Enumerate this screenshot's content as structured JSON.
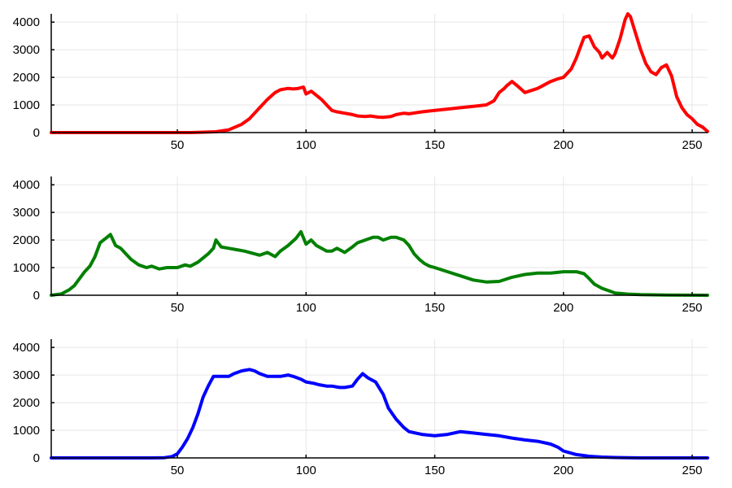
{
  "chart_data": [
    {
      "type": "line",
      "title": "",
      "xlabel": "",
      "ylabel": "",
      "xlim": [
        1,
        256
      ],
      "ylim": [
        0,
        4300
      ],
      "xticks": [
        50,
        100,
        150,
        200,
        250
      ],
      "yticks": [
        0,
        1000,
        2000,
        3000,
        4000
      ],
      "grid": true,
      "series": [
        {
          "color": "#ff0000",
          "x": [
            1,
            20,
            40,
            55,
            65,
            70,
            75,
            78,
            80,
            82,
            85,
            88,
            90,
            93,
            95,
            97,
            99,
            100,
            102,
            104,
            106,
            108,
            110,
            112,
            115,
            118,
            120,
            123,
            125,
            128,
            130,
            133,
            135,
            138,
            140,
            145,
            150,
            155,
            160,
            165,
            170,
            173,
            175,
            177,
            178,
            180,
            182,
            185,
            190,
            195,
            198,
            200,
            203,
            205,
            207,
            208,
            210,
            212,
            214,
            215,
            217,
            219,
            220,
            222,
            224,
            225,
            226,
            228,
            230,
            232,
            234,
            236,
            238,
            240,
            242,
            244,
            246,
            248,
            250,
            252,
            254,
            256
          ],
          "y": [
            0,
            0,
            0,
            0,
            30,
            100,
            300,
            500,
            700,
            900,
            1200,
            1450,
            1550,
            1600,
            1580,
            1600,
            1650,
            1400,
            1500,
            1350,
            1200,
            1000,
            800,
            750,
            700,
            650,
            600,
            580,
            600,
            560,
            550,
            580,
            650,
            700,
            680,
            750,
            800,
            850,
            900,
            950,
            1000,
            1150,
            1450,
            1600,
            1700,
            1850,
            1700,
            1450,
            1600,
            1850,
            1950,
            2000,
            2300,
            2700,
            3200,
            3450,
            3500,
            3100,
            2900,
            2700,
            2900,
            2700,
            2850,
            3400,
            4100,
            4300,
            4200,
            3600,
            3000,
            2500,
            2200,
            2100,
            2350,
            2450,
            2050,
            1300,
            900,
            650,
            500,
            300,
            200,
            40
          ]
        }
      ]
    },
    {
      "type": "line",
      "title": "",
      "xlabel": "",
      "ylabel": "",
      "xlim": [
        1,
        256
      ],
      "ylim": [
        0,
        4300
      ],
      "xticks": [
        50,
        100,
        150,
        200,
        250
      ],
      "yticks": [
        0,
        1000,
        2000,
        3000,
        4000
      ],
      "grid": true,
      "series": [
        {
          "color": "#008000",
          "x": [
            1,
            5,
            8,
            10,
            12,
            14,
            16,
            18,
            20,
            22,
            24,
            26,
            28,
            30,
            32,
            35,
            38,
            40,
            43,
            46,
            50,
            53,
            55,
            58,
            62,
            64,
            65,
            67,
            70,
            73,
            76,
            80,
            82,
            85,
            88,
            90,
            93,
            96,
            98,
            100,
            102,
            104,
            106,
            108,
            110,
            112,
            115,
            118,
            120,
            123,
            126,
            128,
            130,
            133,
            135,
            138,
            140,
            142,
            144,
            146,
            148,
            150,
            155,
            160,
            165,
            170,
            175,
            180,
            185,
            190,
            195,
            200,
            205,
            208,
            210,
            212,
            215,
            218,
            220,
            225,
            230,
            240,
            256
          ],
          "y": [
            0,
            50,
            200,
            350,
            600,
            850,
            1050,
            1400,
            1900,
            2050,
            2200,
            1800,
            1700,
            1500,
            1300,
            1100,
            1000,
            1050,
            950,
            1000,
            1000,
            1100,
            1050,
            1200,
            1500,
            1700,
            2000,
            1750,
            1700,
            1650,
            1600,
            1500,
            1450,
            1550,
            1400,
            1600,
            1800,
            2050,
            2300,
            1850,
            2000,
            1800,
            1700,
            1600,
            1600,
            1700,
            1550,
            1750,
            1900,
            2000,
            2100,
            2100,
            2000,
            2100,
            2100,
            2000,
            1800,
            1500,
            1300,
            1150,
            1050,
            1000,
            850,
            700,
            550,
            480,
            500,
            650,
            750,
            800,
            800,
            850,
            850,
            780,
            600,
            400,
            250,
            150,
            80,
            40,
            20,
            10,
            0
          ]
        }
      ]
    },
    {
      "type": "line",
      "title": "",
      "xlabel": "",
      "ylabel": "",
      "xlim": [
        1,
        256
      ],
      "ylim": [
        0,
        4300
      ],
      "xticks": [
        50,
        100,
        150,
        200,
        250
      ],
      "yticks": [
        0,
        1000,
        2000,
        3000,
        4000
      ],
      "grid": true,
      "series": [
        {
          "color": "#0000ff",
          "x": [
            1,
            20,
            40,
            45,
            48,
            50,
            52,
            54,
            56,
            58,
            60,
            62,
            64,
            66,
            70,
            72,
            75,
            78,
            80,
            82,
            85,
            88,
            90,
            93,
            95,
            98,
            100,
            103,
            105,
            108,
            110,
            113,
            115,
            118,
            120,
            122,
            124,
            125,
            127,
            128,
            130,
            132,
            135,
            138,
            140,
            145,
            150,
            155,
            160,
            165,
            170,
            175,
            180,
            185,
            190,
            195,
            198,
            200,
            205,
            210,
            215,
            220,
            230,
            256
          ],
          "y": [
            0,
            0,
            0,
            10,
            50,
            150,
            400,
            700,
            1100,
            1600,
            2200,
            2600,
            2950,
            2950,
            2950,
            3050,
            3150,
            3200,
            3150,
            3050,
            2950,
            2950,
            2950,
            3000,
            2950,
            2850,
            2750,
            2700,
            2650,
            2600,
            2600,
            2550,
            2550,
            2600,
            2850,
            3050,
            2900,
            2850,
            2750,
            2600,
            2300,
            1800,
            1400,
            1100,
            950,
            850,
            800,
            850,
            950,
            900,
            850,
            800,
            720,
            650,
            600,
            500,
            380,
            250,
            120,
            60,
            30,
            15,
            0,
            0
          ]
        }
      ]
    }
  ]
}
